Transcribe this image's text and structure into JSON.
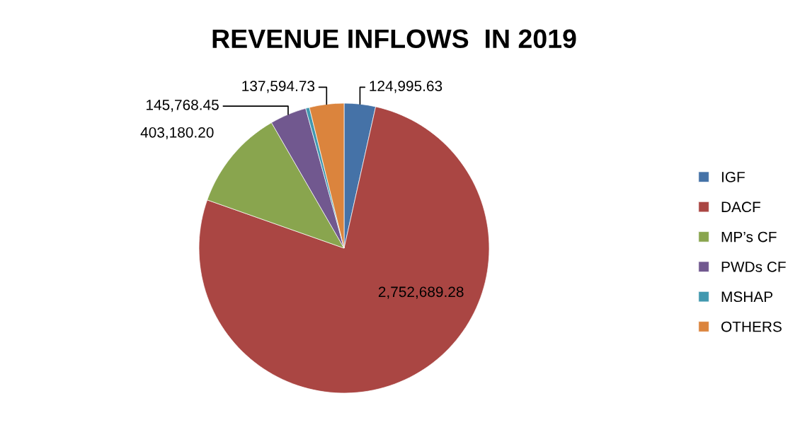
{
  "chart_data": {
    "type": "pie",
    "title": "REVENUE INFLOWS  IN 2019",
    "categories": [
      "IGF",
      "DACF",
      "MP’s CF",
      "PWDs CF",
      "MSHAP",
      "OTHERS"
    ],
    "values": [
      124995.63,
      2752689.28,
      403180.2,
      145768.45,
      15000,
      137594.73
    ],
    "value_labels": [
      "124,995.63",
      "2,752,689.28",
      "403,180.20",
      "145,768.45",
      null,
      "137,594.73"
    ],
    "colors": [
      "#4572a7",
      "#aa4643",
      "#89a54e",
      "#71588f",
      "#4198af",
      "#db843d"
    ],
    "legend": "right"
  }
}
